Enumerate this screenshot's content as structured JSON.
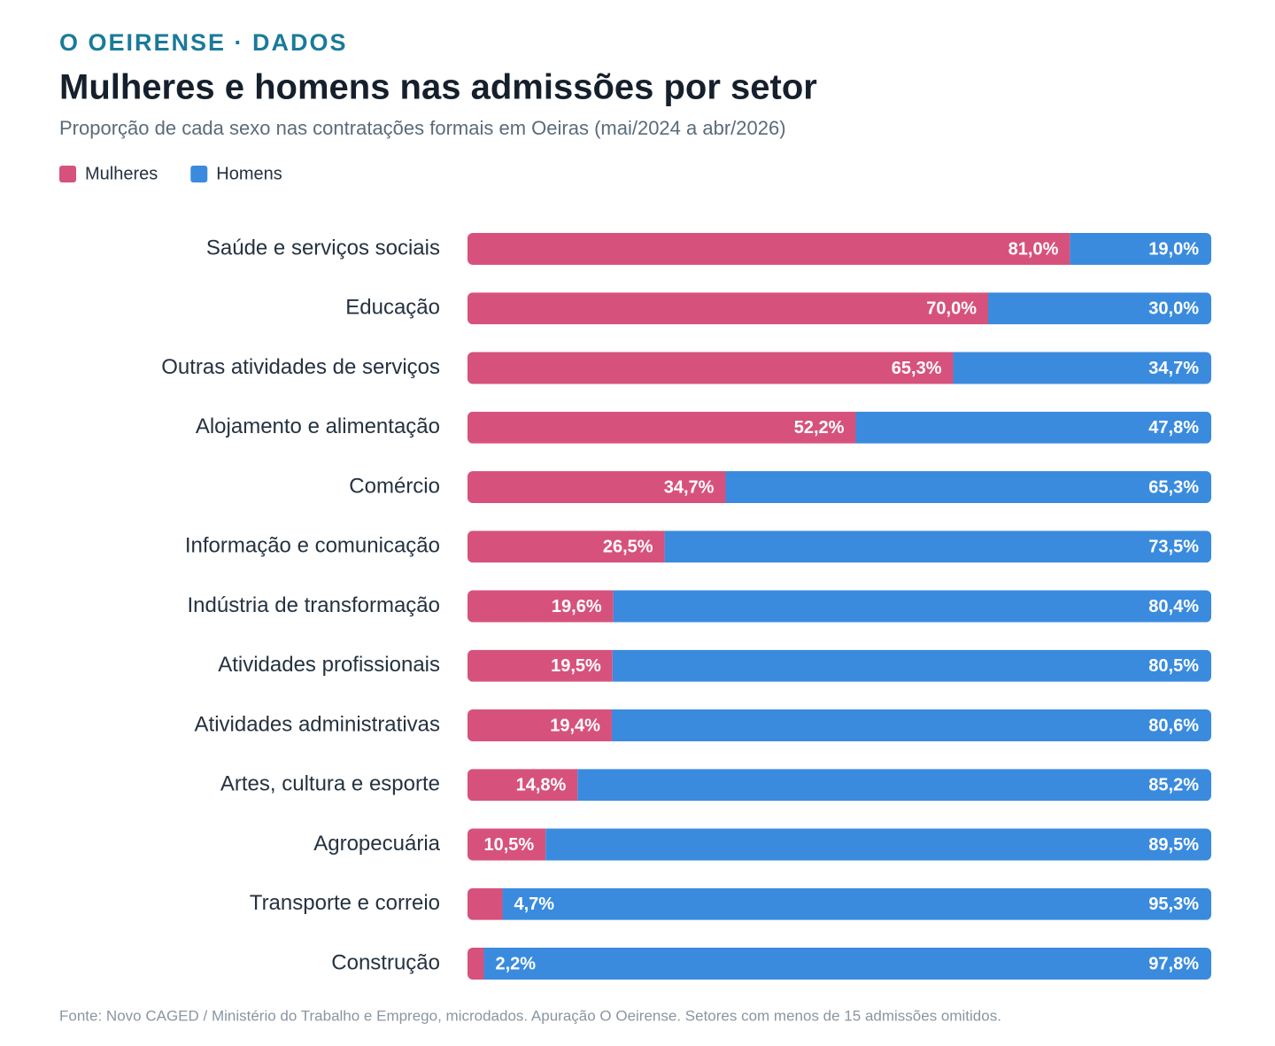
{
  "header": "O OEIRENSE · DADOS",
  "chart_data": {
    "type": "stacked-bar-horizontal",
    "title": "Mulheres e homens nas admissões por setor",
    "subtitle": "Proporção de cada sexo nas contratações formais em Oeiras (mai/2024 a abr/2026)",
    "categories": [
      "Saúde e serviços sociais",
      "Educação",
      "Outras atividades de serviços",
      "Alojamento e alimentação",
      "Comércio",
      "Informação e comunicação",
      "Indústria de transformação",
      "Atividades profissionais",
      "Atividades administrativas",
      "Artes, cultura e esporte",
      "Agropecuária",
      "Transporte e correio",
      "Construção"
    ],
    "xlim": [
      0,
      100
    ],
    "series": [
      {
        "name": "Mulheres",
        "color": "#d6527c",
        "values": [
          81.0,
          70.0,
          65.3,
          52.2,
          34.7,
          26.5,
          19.6,
          19.5,
          19.4,
          14.8,
          10.5,
          4.7,
          2.2
        ],
        "value_labels": [
          "81,0%",
          "70,0%",
          "65,3%",
          "52,2%",
          "34,7%",
          "26,5%",
          "19,6%",
          "19,5%",
          "19,4%",
          "14,8%",
          "10,5%",
          "4,7%",
          "2,2%"
        ]
      },
      {
        "name": "Homens",
        "color": "#3a8bde",
        "values": [
          19.0,
          30.0,
          34.7,
          47.8,
          65.3,
          73.5,
          80.4,
          80.5,
          80.6,
          85.2,
          89.5,
          95.3,
          97.8
        ],
        "value_labels": [
          "19,0%",
          "30,0%",
          "34,7%",
          "47,8%",
          "65,3%",
          "73,5%",
          "80,4%",
          "80,5%",
          "80,6%",
          "85,2%",
          "89,5%",
          "95,3%",
          "97,8%"
        ]
      }
    ],
    "legend": "top-left"
  },
  "source": "Fonte: Novo CAGED / Ministério do Trabalho e Emprego, microdados. Apuração O Oeirense. Setores com menos de 15 admissões omitidos."
}
